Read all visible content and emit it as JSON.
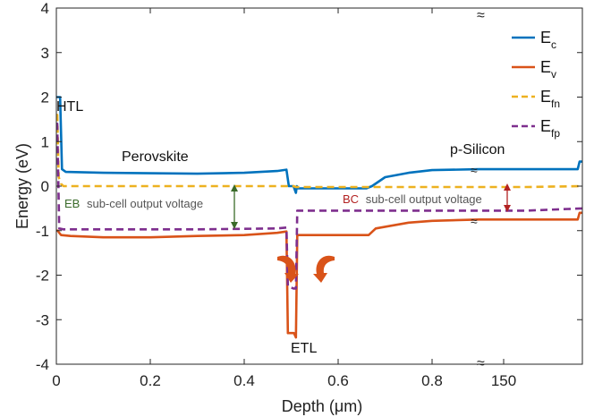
{
  "chart_data": {
    "type": "line",
    "xlabel": "Depth (μm)",
    "ylabel": "Energy (eV)",
    "xlim": [
      0,
      1.12
    ],
    "ylim": [
      -4,
      4
    ],
    "x_ticks": [
      "0",
      "0.2",
      "0.4",
      "0.6",
      "0.8"
    ],
    "x_break_tick": "150",
    "y_ticks": [
      "4",
      "3",
      "2",
      "1",
      "0",
      "-1",
      "-2",
      "-3",
      "-4"
    ],
    "legend_position": "top-right",
    "legend": [
      {
        "main": "E",
        "sub": "c",
        "color": "#0072BD",
        "style": "solid"
      },
      {
        "main": "E",
        "sub": "v",
        "color": "#D95319",
        "style": "solid"
      },
      {
        "main": "E",
        "sub": "fn",
        "color": "#EDB120",
        "style": "dashed"
      },
      {
        "main": "E",
        "sub": "fp",
        "color": "#7E2F8E",
        "style": "dashed"
      }
    ],
    "annotations": {
      "htl": "HTL",
      "perovskite": "Perovskite",
      "psilicon": "p-Silicon",
      "etl": "ETL",
      "eb_prefix": "EB",
      "eb_text": "sub-cell output voltage",
      "bc_prefix": "BC",
      "bc_text": "sub-cell output voltage"
    },
    "series": [
      {
        "name": "Ec",
        "color": "#0072BD",
        "dash": false,
        "x": [
          0.0,
          0.003,
          0.008,
          0.012,
          0.02,
          0.1,
          0.3,
          0.4,
          0.47,
          0.49,
          0.495,
          0.505,
          0.51,
          0.512,
          0.515,
          0.52,
          0.6,
          0.66,
          0.672,
          0.7,
          0.75,
          0.8,
          0.9,
          1.0,
          1.1,
          1.11,
          1.114,
          1.12
        ],
        "y": [
          2.0,
          2.0,
          2.0,
          0.38,
          0.32,
          0.3,
          0.28,
          0.3,
          0.34,
          0.37,
          0.0,
          0.0,
          -0.15,
          0.0,
          -0.05,
          -0.05,
          -0.05,
          -0.05,
          0.0,
          0.2,
          0.3,
          0.36,
          0.38,
          0.38,
          0.38,
          0.38,
          0.55,
          0.55
        ]
      },
      {
        "name": "Ev",
        "color": "#D95319",
        "dash": false,
        "x": [
          0.0,
          0.003,
          0.006,
          0.01,
          0.03,
          0.1,
          0.2,
          0.3,
          0.4,
          0.47,
          0.49,
          0.493,
          0.506,
          0.51,
          0.513,
          0.517,
          0.52,
          0.6,
          0.665,
          0.68,
          0.75,
          0.8,
          0.9,
          1.0,
          1.1,
          1.11,
          1.114,
          1.12
        ],
        "y": [
          -1.0,
          -1.0,
          -1.05,
          -1.1,
          -1.12,
          -1.15,
          -1.15,
          -1.12,
          -1.1,
          -1.05,
          -1.02,
          -3.3,
          -3.3,
          -3.4,
          -1.1,
          -1.1,
          -1.1,
          -1.1,
          -1.1,
          -0.95,
          -0.82,
          -0.78,
          -0.75,
          -0.75,
          -0.75,
          -0.75,
          -0.6,
          -0.6
        ]
      },
      {
        "name": "Efn",
        "color": "#EDB120",
        "dash": true,
        "x": [
          0.0,
          0.002,
          0.005,
          0.01,
          0.015,
          0.1,
          0.3,
          0.49,
          0.505,
          0.51,
          0.6,
          0.8,
          1.0,
          1.12
        ],
        "y": [
          1.6,
          1.6,
          0.2,
          0.05,
          0.0,
          0.0,
          0.0,
          0.0,
          0.0,
          -0.02,
          -0.02,
          -0.02,
          -0.02,
          0.0
        ]
      },
      {
        "name": "Efp",
        "color": "#7E2F8E",
        "dash": true,
        "x": [
          0.0,
          0.002,
          0.006,
          0.015,
          0.1,
          0.3,
          0.47,
          0.49,
          0.493,
          0.505,
          0.51,
          0.513,
          0.516,
          0.52,
          0.6,
          0.8,
          1.0,
          1.12
        ],
        "y": [
          1.4,
          1.4,
          -0.95,
          -0.97,
          -0.97,
          -0.97,
          -0.95,
          -0.93,
          -2.25,
          -2.3,
          -2.3,
          -0.55,
          -0.55,
          -0.55,
          -0.55,
          -0.55,
          -0.55,
          -0.5
        ]
      }
    ]
  }
}
